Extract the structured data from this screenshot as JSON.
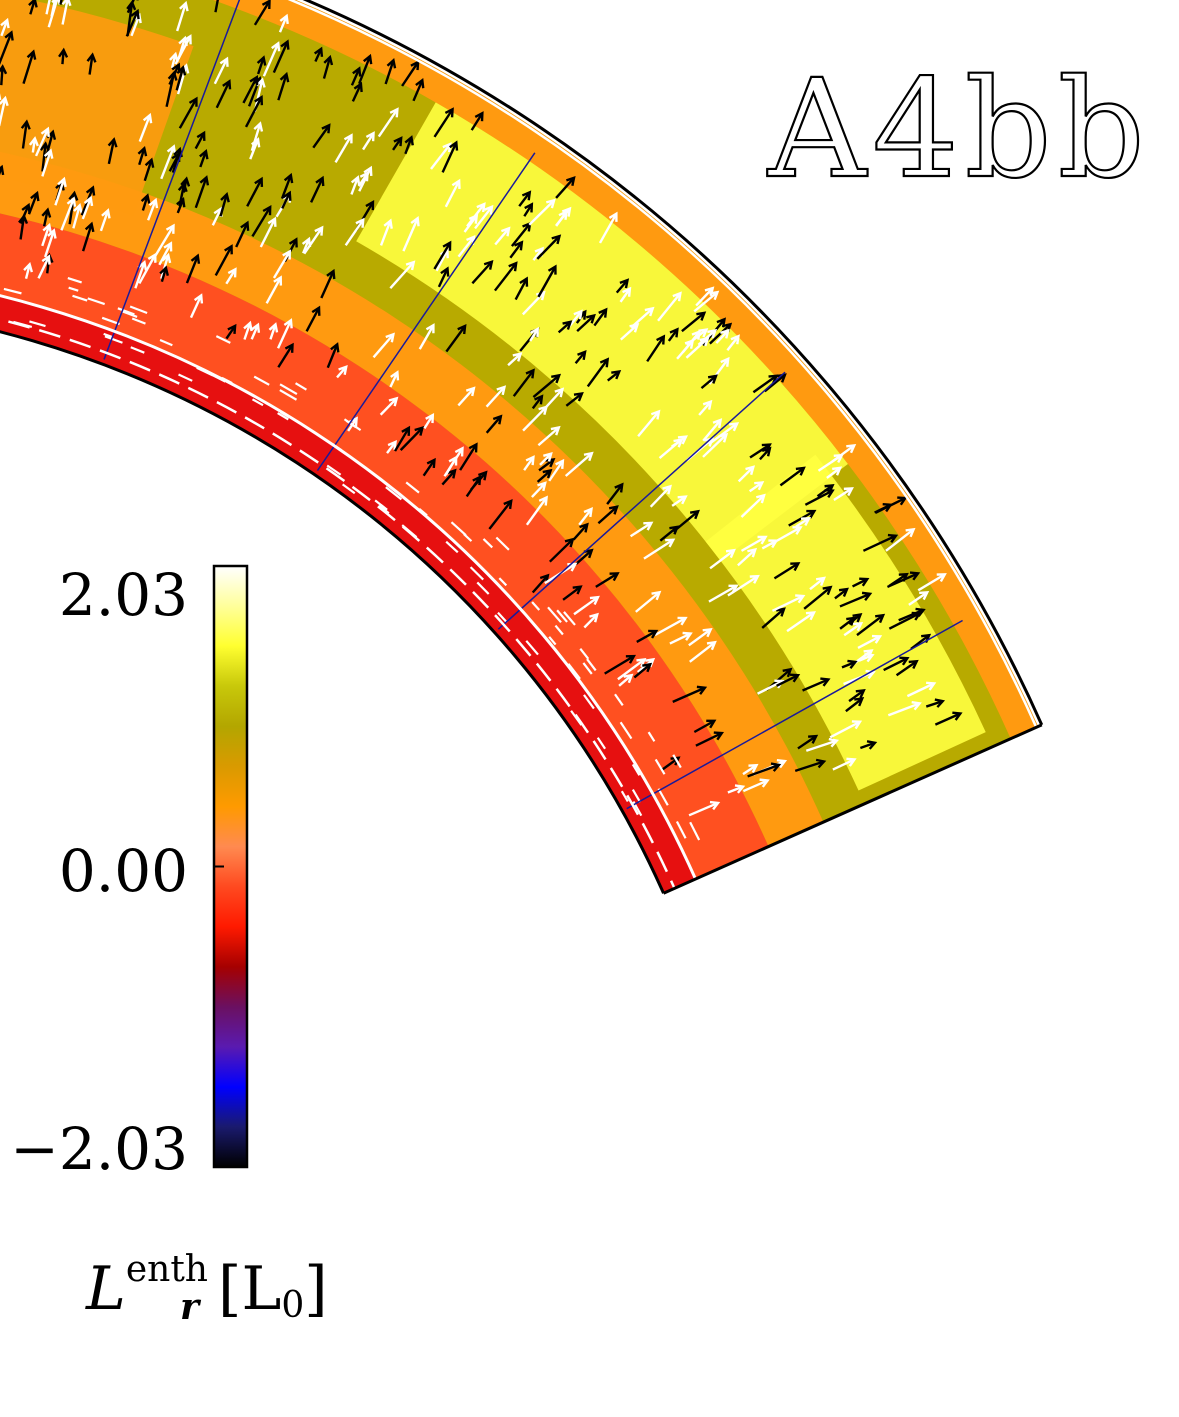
{
  "panel_label": "A4bb",
  "chart_data": {
    "type": "heatmap",
    "geometry_type": "meridional wedge (spherical shell section) with velocity arrows",
    "panel_label": "A4bb",
    "colorbar": {
      "title_symbol": "L",
      "title_superscript": "enth",
      "title_subscript": "r",
      "title_unit": "[L",
      "title_unit_subscript": "0",
      "title_unit_close": "]",
      "ticks": [
        "2.03",
        "0.00",
        "−2.03"
      ],
      "min": -2.03,
      "max": 2.03,
      "colors": [
        "#000000",
        "#1a1a6e",
        "#0000ff",
        "#5a1ab0",
        "#6b1060",
        "#a50000",
        "#ff1a00",
        "#ff4a20",
        "#ff8a50",
        "#ff9a00",
        "#d99a00",
        "#b3a600",
        "#c8c80a",
        "#ffff30",
        "#ffff9a",
        "#ffffff"
      ]
    },
    "contour_levels": [
      -2.03,
      0.0,
      0.25,
      0.5,
      0.75,
      1.0,
      1.25,
      1.5,
      2.03
    ],
    "colors": {
      "positive_high": "#ffff40",
      "positive_mid": "#b8aa00",
      "positive_low": "#ff9a10",
      "near_zero": "#ff5020",
      "negative_layer": "#e61010"
    },
    "arrow_colors": [
      "#000000",
      "#ffffff"
    ]
  }
}
